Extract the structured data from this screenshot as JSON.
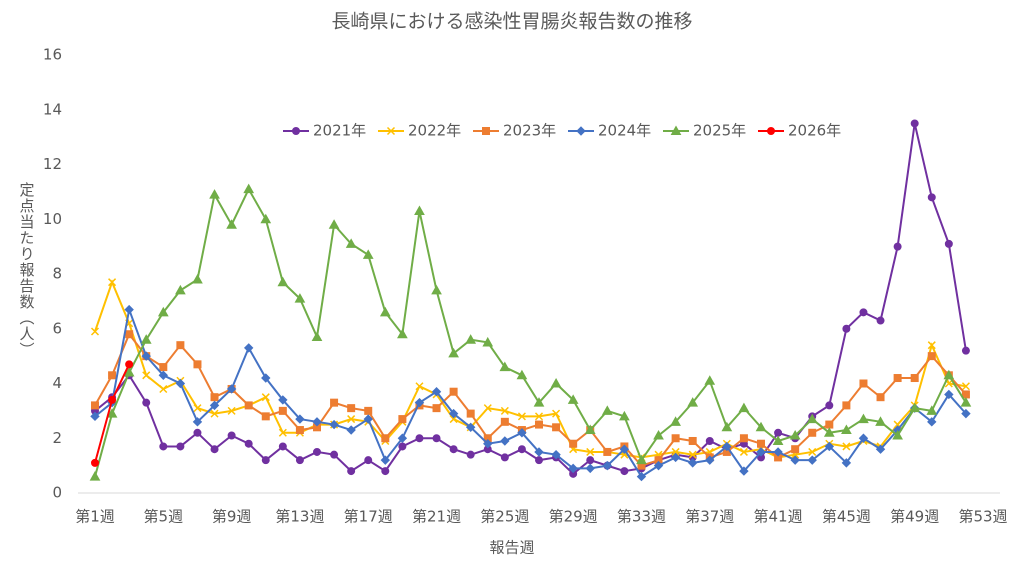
{
  "chart_data": {
    "type": "line",
    "title": "長崎県における感染性胃腸炎報告数の推移",
    "x_label": "報告週",
    "y_label": "定点当たり報告数（人）",
    "categories": [
      "第1週",
      null,
      null,
      null,
      "第5週",
      null,
      null,
      null,
      "第9週",
      null,
      null,
      null,
      "第13週",
      null,
      null,
      null,
      "第17週",
      null,
      null,
      null,
      "第21週",
      null,
      null,
      null,
      "第25週",
      null,
      null,
      null,
      "第29週",
      null,
      null,
      null,
      "第33週",
      null,
      null,
      null,
      "第37週",
      null,
      null,
      null,
      "第41週",
      null,
      null,
      null,
      "第45週",
      null,
      null,
      null,
      "第49週",
      null,
      null,
      null,
      "第53週"
    ],
    "ylim": [
      0,
      16
    ],
    "yticks": [
      0,
      2,
      4,
      6,
      8,
      10,
      12,
      14,
      16
    ],
    "grid": false,
    "legend": "top",
    "series": [
      {
        "name": "2021年",
        "color": "#7030a0",
        "marker": "circle",
        "values": [
          3.0,
          3.5,
          4.3,
          3.3,
          1.7,
          1.7,
          2.2,
          1.6,
          2.1,
          1.8,
          1.2,
          1.7,
          1.2,
          1.5,
          1.4,
          0.8,
          1.2,
          0.8,
          1.7,
          2.0,
          2.0,
          1.6,
          1.4,
          1.6,
          1.3,
          1.6,
          1.2,
          1.3,
          0.7,
          1.2,
          1.0,
          0.8,
          0.9,
          1.2,
          1.4,
          1.3,
          1.9,
          1.6,
          1.8,
          1.3,
          2.2,
          2.0,
          2.8,
          3.2,
          6.0,
          6.6,
          6.3,
          9.0,
          13.5,
          10.8,
          9.1,
          5.2,
          null
        ]
      },
      {
        "name": "2022年",
        "color": "#ffc000",
        "marker": "x",
        "values": [
          5.9,
          7.7,
          6.2,
          4.3,
          3.8,
          4.1,
          3.1,
          2.9,
          3.0,
          3.2,
          3.5,
          2.2,
          2.2,
          2.5,
          2.5,
          2.7,
          2.6,
          1.9,
          2.6,
          3.9,
          3.6,
          2.7,
          2.4,
          3.1,
          3.0,
          2.8,
          2.8,
          2.9,
          1.6,
          1.5,
          1.5,
          1.4,
          1.3,
          1.4,
          1.5,
          1.4,
          1.5,
          1.8,
          1.5,
          1.6,
          1.3,
          1.4,
          1.5,
          1.8,
          1.7,
          1.9,
          1.7,
          2.5,
          3.2,
          5.4,
          4.0,
          3.9,
          null
        ]
      },
      {
        "name": "2023年",
        "color": "#ed7d31",
        "marker": "square",
        "values": [
          3.2,
          4.3,
          5.8,
          5.0,
          4.6,
          5.4,
          4.7,
          3.5,
          3.8,
          3.2,
          2.8,
          3.0,
          2.3,
          2.4,
          3.3,
          3.1,
          3.0,
          2.0,
          2.7,
          3.2,
          3.1,
          3.7,
          2.9,
          2.0,
          2.6,
          2.3,
          2.5,
          2.4,
          1.8,
          2.3,
          1.5,
          1.7,
          1.0,
          1.2,
          2.0,
          1.9,
          1.3,
          1.5,
          2.0,
          1.8,
          1.3,
          1.6,
          2.2,
          2.5,
          3.2,
          4.0,
          3.5,
          4.2,
          4.2,
          5.0,
          4.3,
          3.6,
          null
        ]
      },
      {
        "name": "2024年",
        "color": "#4472c4",
        "marker": "diamond",
        "values": [
          2.8,
          3.3,
          6.7,
          5.0,
          4.3,
          4.0,
          2.6,
          3.2,
          3.8,
          5.3,
          4.2,
          3.4,
          2.7,
          2.6,
          2.5,
          2.3,
          2.7,
          1.2,
          2.0,
          3.3,
          3.7,
          2.9,
          2.4,
          1.8,
          1.9,
          2.2,
          1.5,
          1.4,
          0.9,
          0.9,
          1.0,
          1.6,
          0.6,
          1.0,
          1.3,
          1.1,
          1.2,
          1.7,
          0.8,
          1.5,
          1.5,
          1.2,
          1.2,
          1.7,
          1.1,
          2.0,
          1.6,
          2.3,
          3.1,
          2.6,
          3.6,
          2.9,
          null
        ]
      },
      {
        "name": "2025年",
        "color": "#70ad47",
        "marker": "triangle",
        "values": [
          0.6,
          2.9,
          4.4,
          5.6,
          6.6,
          7.4,
          7.8,
          10.9,
          9.8,
          11.1,
          10.0,
          7.7,
          7.1,
          5.7,
          9.8,
          9.1,
          8.7,
          6.6,
          5.8,
          10.3,
          7.4,
          5.1,
          5.6,
          5.5,
          4.6,
          4.3,
          3.3,
          4.0,
          3.4,
          2.3,
          3.0,
          2.8,
          1.2,
          2.1,
          2.6,
          3.3,
          4.1,
          2.4,
          3.1,
          2.4,
          1.9,
          2.1,
          2.7,
          2.2,
          2.3,
          2.7,
          2.6,
          2.1,
          3.1,
          3.0,
          4.3,
          3.3,
          null
        ]
      },
      {
        "name": "2026年",
        "color": "#ff0000",
        "marker": "circle",
        "values": [
          1.1,
          3.4,
          4.7,
          null,
          null,
          null,
          null,
          null,
          null,
          null,
          null,
          null,
          null,
          null,
          null,
          null,
          null,
          null,
          null,
          null,
          null,
          null,
          null,
          null,
          null,
          null,
          null,
          null,
          null,
          null,
          null,
          null,
          null,
          null,
          null,
          null,
          null,
          null,
          null,
          null,
          null,
          null,
          null,
          null,
          null,
          null,
          null,
          null,
          null,
          null,
          null,
          null,
          null
        ]
      }
    ]
  }
}
